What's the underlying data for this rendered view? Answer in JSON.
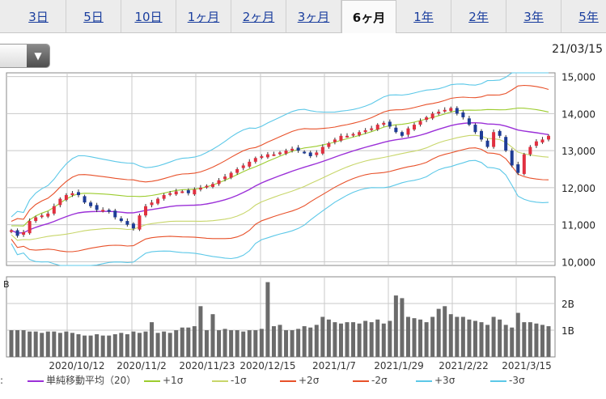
{
  "tabs": [
    {
      "label": "3日",
      "active": false
    },
    {
      "label": "5日",
      "active": false
    },
    {
      "label": "10日",
      "active": false
    },
    {
      "label": "1ヶ月",
      "active": false
    },
    {
      "label": "2ヶ月",
      "active": false
    },
    {
      "label": "3ヶ月",
      "active": false
    },
    {
      "label": "6ヶ月",
      "active": true
    },
    {
      "label": "1年",
      "active": false
    },
    {
      "label": "2年",
      "active": false
    },
    {
      "label": "3年",
      "active": false
    },
    {
      "label": "5年",
      "active": false
    }
  ],
  "date_label": "21/03/15",
  "dropdown_icon": "triangle-down-icon",
  "legend_prefix": ":",
  "legend": [
    {
      "label": "単純移動平均（20）",
      "color": "#9b30d8"
    },
    {
      "label": "+1σ",
      "color": "#9ccc2e"
    },
    {
      "label": "-1σ",
      "color": "#c8d66a"
    },
    {
      "label": "+2σ",
      "color": "#e8512a"
    },
    {
      "label": "-2σ",
      "color": "#e8512a"
    },
    {
      "label": "+3σ",
      "color": "#5cc8e8"
    },
    {
      "label": "-3σ",
      "color": "#5cc8e8"
    }
  ],
  "chart_data": [
    {
      "type": "candlestick",
      "title": "",
      "y_ticks": [
        "10,000",
        "11,000",
        "12,000",
        "13,000",
        "14,000",
        "15,000"
      ],
      "ylim": [
        9900,
        15100
      ],
      "x_tick_labels": [
        "2020/10/12",
        "2020/11/2",
        "2020/11/23",
        "2020/12/15",
        "2021/1/7",
        "2021/1/29",
        "2021/2/22",
        "2021/3/15"
      ],
      "up_color": "#e03040",
      "down_color": "#1e3c96",
      "close": [
        10850,
        10700,
        10800,
        11100,
        11200,
        11250,
        11300,
        11500,
        11700,
        11800,
        11850,
        11800,
        11600,
        11500,
        11400,
        11400,
        11350,
        11200,
        11100,
        11000,
        10900,
        11250,
        11500,
        11600,
        11700,
        11800,
        11850,
        11900,
        11900,
        11850,
        11950,
        12000,
        12050,
        12100,
        12200,
        12300,
        12400,
        12500,
        12600,
        12700,
        12800,
        12850,
        12900,
        12900,
        12950,
        13000,
        13050,
        13000,
        12950,
        12850,
        12950,
        13100,
        13200,
        13300,
        13400,
        13400,
        13450,
        13500,
        13550,
        13600,
        13700,
        13750,
        13650,
        13500,
        13400,
        13600,
        13700,
        13800,
        13900,
        14000,
        14050,
        14100,
        14150,
        14000,
        13900,
        13700,
        13500,
        13300,
        13100,
        13500,
        13400,
        13000,
        12600,
        12400,
        12900,
        13100,
        13250,
        13300,
        13400
      ],
      "bollinger_legend": [
        "単純移動平均（20）",
        "+1σ",
        "-1σ",
        "+2σ",
        "-2σ",
        "+3σ",
        "-3σ"
      ]
    },
    {
      "type": "bar",
      "title": "",
      "y_unit_label": "B",
      "y_ticks": [
        "1B",
        "2B"
      ],
      "ylim": [
        0,
        3
      ],
      "values": [
        1.0,
        1.0,
        1.0,
        0.95,
        0.95,
        0.9,
        0.95,
        0.95,
        0.9,
        0.95,
        0.9,
        0.85,
        0.8,
        0.8,
        0.85,
        0.8,
        0.8,
        0.85,
        0.9,
        0.85,
        0.95,
        0.9,
        0.95,
        1.3,
        0.9,
        0.95,
        0.9,
        1.0,
        1.1,
        1.1,
        1.15,
        1.9,
        1.0,
        1.6,
        1.0,
        1.05,
        1.0,
        1.0,
        0.95,
        1.0,
        1.0,
        1.05,
        2.8,
        1.15,
        1.2,
        1.0,
        1.0,
        1.05,
        1.15,
        1.1,
        1.2,
        1.5,
        1.4,
        1.3,
        1.25,
        1.3,
        1.3,
        1.25,
        1.35,
        1.3,
        1.4,
        1.25,
        1.35,
        2.3,
        2.2,
        1.5,
        1.45,
        1.4,
        1.3,
        1.5,
        1.8,
        1.9,
        1.6,
        1.5,
        1.5,
        1.4,
        1.35,
        1.3,
        1.2,
        1.5,
        1.4,
        1.2,
        1.1,
        1.65,
        1.3,
        1.3,
        1.25,
        1.2,
        1.15
      ],
      "x_tick_labels": [
        "2020/10/12",
        "2020/11/2",
        "2020/11/23",
        "2020/12/15",
        "2021/1/7",
        "2021/1/29",
        "2021/2/22",
        "2021/3/15"
      ]
    }
  ]
}
